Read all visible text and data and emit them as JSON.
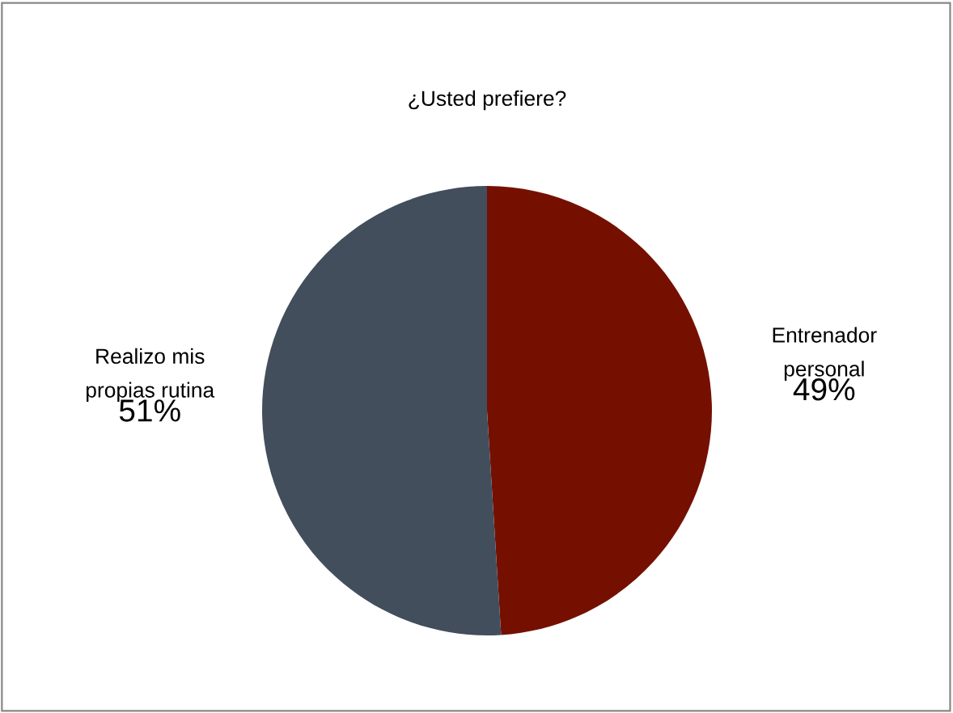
{
  "chart_data": {
    "type": "pie",
    "title": "¿Usted prefiere?",
    "categories": [
      "Entrenador\npersonal",
      "Realizo mis\npropias rutina"
    ],
    "values": [
      49,
      51
    ],
    "colors": [
      "#751000",
      "#424e5c"
    ],
    "value_labels": [
      "49%",
      "51%"
    ],
    "legend": false
  }
}
